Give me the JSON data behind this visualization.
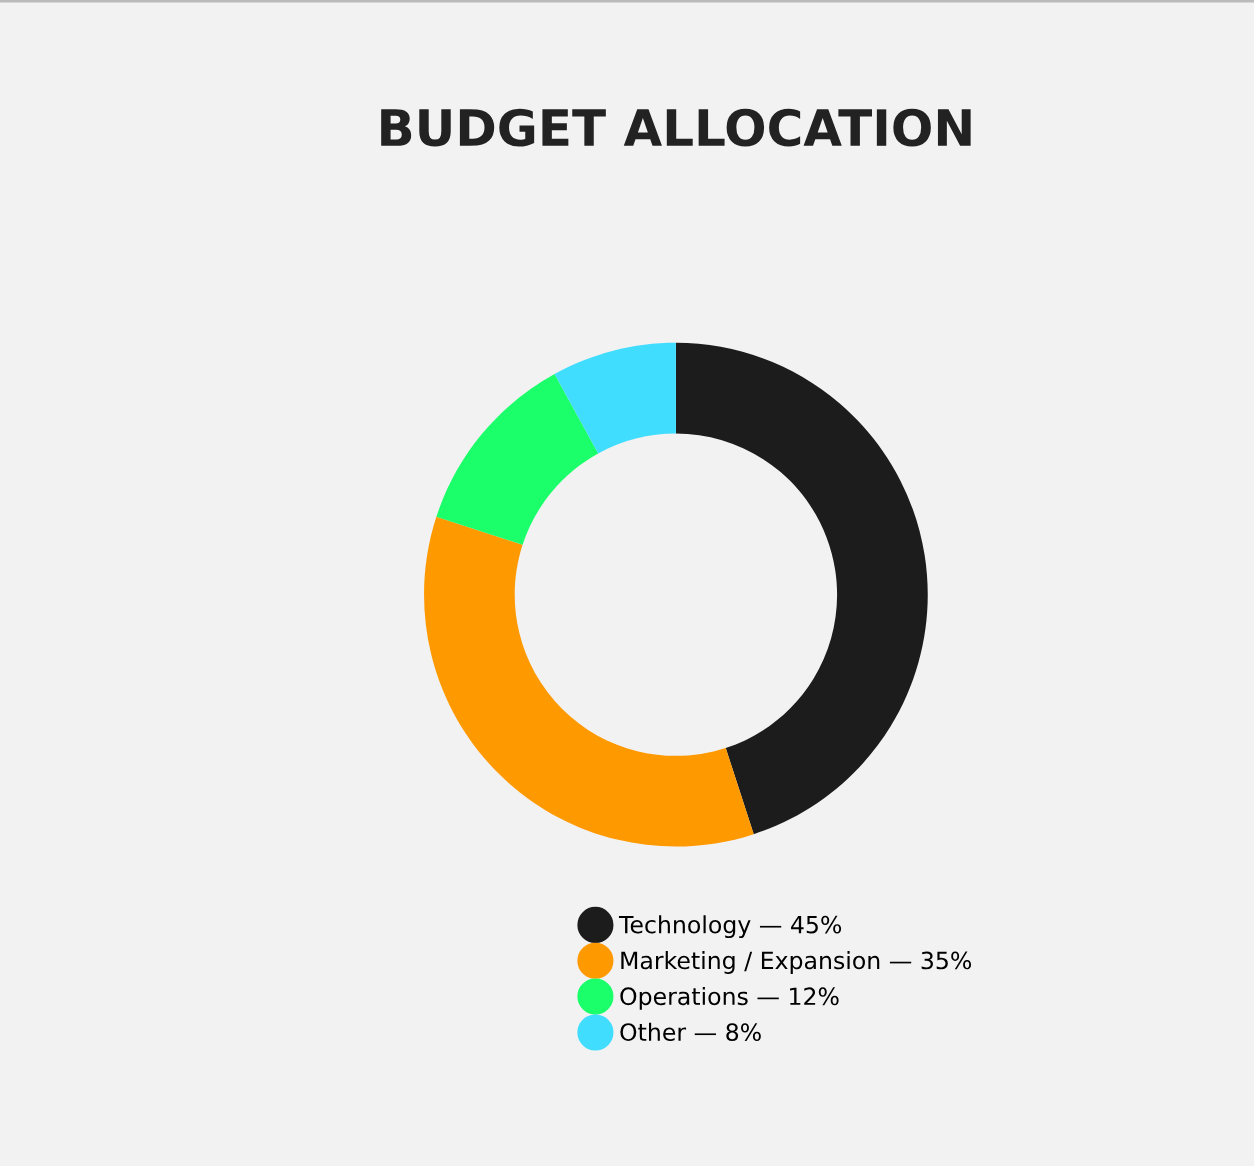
{
  "chart_data": {
    "type": "donut",
    "title": "BUDGET ALLOCATION",
    "categories": [
      "Technology — 45%",
      "Marketing / Expansion — 35%",
      "Operations — 12%",
      "Other — 8%"
    ],
    "values": [
      45,
      35,
      12,
      8
    ],
    "colors": [
      "#1c1c1c",
      "#ff9900",
      "#1aff6a",
      "#40ddff"
    ],
    "legend": "bottom"
  }
}
